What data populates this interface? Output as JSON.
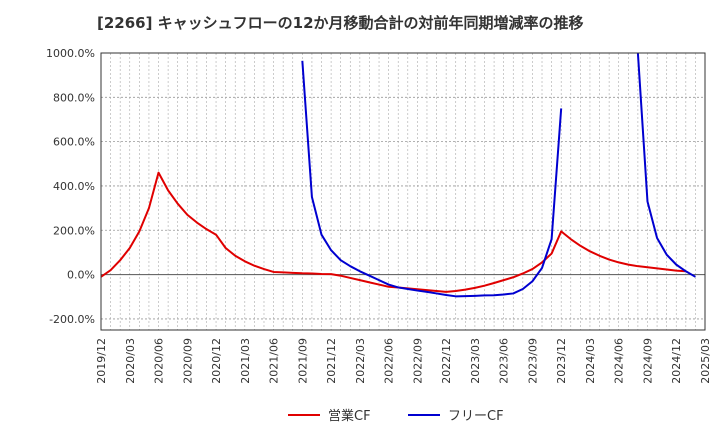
{
  "chart_data": {
    "type": "line",
    "title": "[2266]  キャッシュフローの12か月移動合計の対前年同期増減率の推移",
    "xlabel": "",
    "ylabel": "",
    "ylim": [
      -250,
      1000
    ],
    "y_ticks": [
      -200,
      0,
      200,
      400,
      600,
      800,
      1000
    ],
    "y_tick_labels": [
      "-200.0%",
      "0.0%",
      "200.0%",
      "400.0%",
      "600.0%",
      "800.0%",
      "1000.0%"
    ],
    "x_start": "2019/12",
    "x_tick_labels": [
      "2019/12",
      "2020/03",
      "2020/06",
      "2020/09",
      "2020/12",
      "2021/03",
      "2021/06",
      "2021/09",
      "2021/12",
      "2022/03",
      "2022/06",
      "2022/09",
      "2022/12",
      "2023/03",
      "2023/06",
      "2023/09",
      "2023/12",
      "2024/03",
      "2024/06",
      "2024/09",
      "2024/12",
      "2025/03"
    ],
    "x_range_months": [
      0,
      63
    ],
    "grid": true,
    "legend_position": "bottom",
    "series": [
      {
        "name": "営業CF",
        "color": "#e00000",
        "points": [
          [
            0,
            -10
          ],
          [
            1,
            20
          ],
          [
            2,
            65
          ],
          [
            3,
            120
          ],
          [
            4,
            195
          ],
          [
            5,
            300
          ],
          [
            6,
            460
          ],
          [
            7,
            380
          ],
          [
            8,
            320
          ],
          [
            9,
            270
          ],
          [
            10,
            235
          ],
          [
            11,
            205
          ],
          [
            12,
            180
          ],
          [
            13,
            120
          ],
          [
            14,
            85
          ],
          [
            15,
            60
          ],
          [
            16,
            40
          ],
          [
            17,
            25
          ],
          [
            18,
            12
          ],
          [
            19,
            10
          ],
          [
            20,
            8
          ],
          [
            21,
            6
          ],
          [
            22,
            5
          ],
          [
            23,
            3
          ],
          [
            24,
            2
          ],
          [
            25,
            -5
          ],
          [
            26,
            -15
          ],
          [
            27,
            -25
          ],
          [
            28,
            -35
          ],
          [
            29,
            -45
          ],
          [
            30,
            -55
          ],
          [
            31,
            -58
          ],
          [
            32,
            -62
          ],
          [
            33,
            -66
          ],
          [
            34,
            -70
          ],
          [
            35,
            -74
          ],
          [
            36,
            -78
          ],
          [
            37,
            -74
          ],
          [
            38,
            -68
          ],
          [
            39,
            -60
          ],
          [
            40,
            -50
          ],
          [
            41,
            -38
          ],
          [
            42,
            -25
          ],
          [
            43,
            -12
          ],
          [
            44,
            5
          ],
          [
            45,
            25
          ],
          [
            46,
            55
          ],
          [
            47,
            95
          ],
          [
            48,
            195
          ],
          [
            49,
            160
          ],
          [
            50,
            130
          ],
          [
            51,
            105
          ],
          [
            52,
            85
          ],
          [
            53,
            68
          ],
          [
            54,
            55
          ],
          [
            55,
            45
          ],
          [
            56,
            38
          ],
          [
            57,
            33
          ],
          [
            58,
            28
          ],
          [
            59,
            23
          ],
          [
            60,
            18
          ],
          [
            61,
            15
          ]
        ]
      },
      {
        "name": "フリーCF",
        "color": "#0000d0",
        "segments": [
          [
            [
              21,
              965
            ],
            [
              22,
              350
            ],
            [
              23,
              180
            ],
            [
              24,
              110
            ],
            [
              25,
              65
            ],
            [
              26,
              38
            ],
            [
              27,
              15
            ],
            [
              28,
              -5
            ],
            [
              29,
              -25
            ],
            [
              30,
              -45
            ],
            [
              31,
              -58
            ],
            [
              32,
              -65
            ],
            [
              33,
              -72
            ],
            [
              34,
              -78
            ],
            [
              35,
              -85
            ],
            [
              36,
              -92
            ],
            [
              37,
              -98
            ],
            [
              38,
              -97
            ],
            [
              39,
              -96
            ],
            [
              40,
              -94
            ],
            [
              41,
              -93
            ],
            [
              42,
              -90
            ],
            [
              43,
              -85
            ],
            [
              44,
              -65
            ],
            [
              45,
              -30
            ],
            [
              46,
              30
            ],
            [
              47,
              160
            ],
            [
              48,
              750
            ]
          ],
          [
            [
              56,
              1000
            ],
            [
              57,
              330
            ],
            [
              58,
              165
            ],
            [
              59,
              90
            ],
            [
              60,
              45
            ],
            [
              61,
              15
            ],
            [
              62,
              -10
            ]
          ]
        ]
      }
    ]
  }
}
